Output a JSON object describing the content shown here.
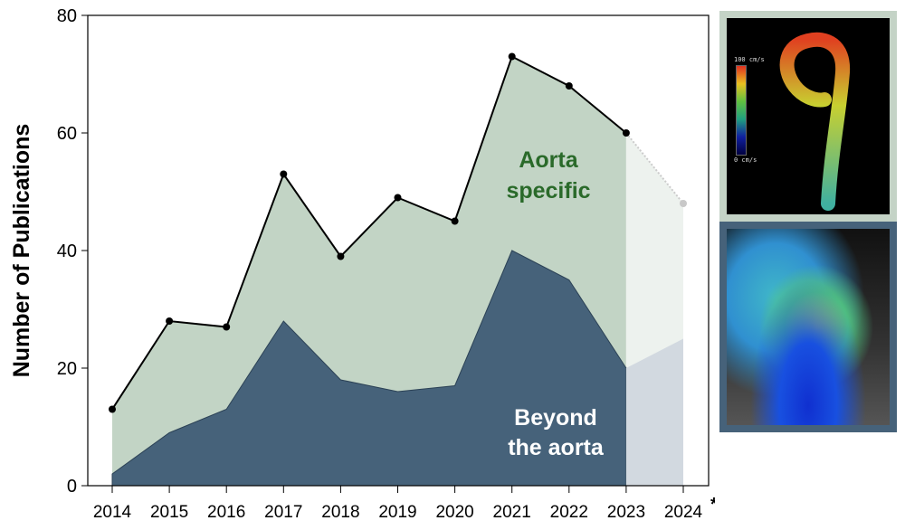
{
  "chart_data": {
    "type": "area",
    "ylabel": "Number of Publications",
    "xlabel": "",
    "x": [
      "2014",
      "2015",
      "2016",
      "2017",
      "2018",
      "2019",
      "2020",
      "2021",
      "2022",
      "2023",
      "2024*"
    ],
    "ylim": [
      0,
      80
    ],
    "yticks": [
      0,
      20,
      40,
      60,
      80
    ],
    "grid": false,
    "series": [
      {
        "name": "Aorta specific",
        "label_lines": [
          "Aorta",
          "specific"
        ],
        "values": [
          13,
          28,
          27,
          53,
          39,
          49,
          45,
          73,
          68,
          60,
          48
        ],
        "color": "#c2d4c5",
        "projected_color": "#edf2ee"
      },
      {
        "name": "Beyond the aorta",
        "label_lines": [
          "Beyond",
          "the aorta"
        ],
        "values": [
          2,
          9,
          13,
          28,
          18,
          16,
          17,
          40,
          35,
          20,
          25
        ],
        "color": "#46627a",
        "projected_color": "#d2d9e0"
      }
    ],
    "projected_from": "2023",
    "label_colors": {
      "aorta": "#2a6a2a",
      "beyond": "#ffffff"
    }
  },
  "images": {
    "top": {
      "scale_max": "100 cm/s",
      "scale_min": "0 cm/s",
      "border": "#c4d3c6"
    },
    "bottom": {
      "border": "#46627a"
    }
  }
}
